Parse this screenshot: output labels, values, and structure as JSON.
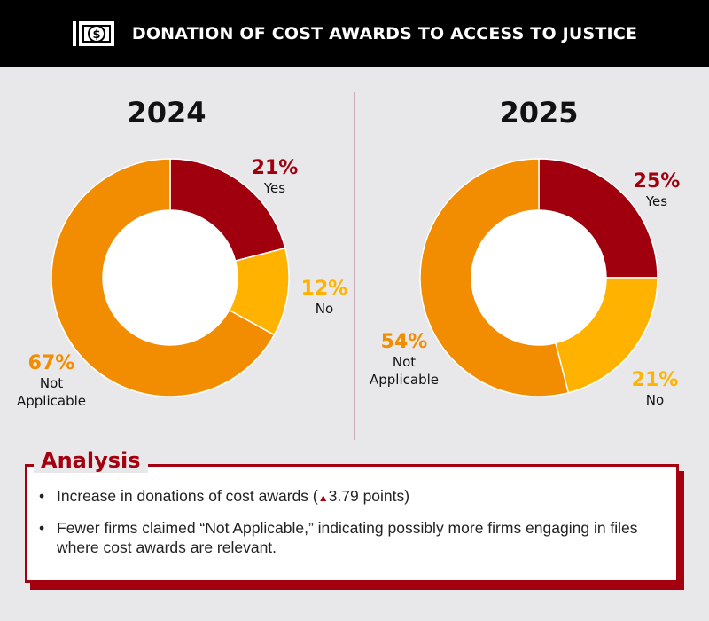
{
  "header": {
    "title": "DONATION OF COST AWARDS TO ACCESS TO JUSTICE",
    "icon": "money-bill-icon"
  },
  "colors": {
    "yes": "#a0000e",
    "no": "#ffb300",
    "not_applicable": "#f28c00",
    "accent": "#a4000f"
  },
  "chart_data": [
    {
      "type": "pie",
      "title": "2024",
      "slices": [
        {
          "label": "Yes",
          "value_label": "21%",
          "value": 21
        },
        {
          "label": "No",
          "value_label": "12%",
          "value": 12
        },
        {
          "label": "Not Applicable",
          "value_label": "67%",
          "value": 67
        }
      ]
    },
    {
      "type": "pie",
      "title": "2025",
      "slices": [
        {
          "label": "Yes",
          "value_label": "25%",
          "value": 25
        },
        {
          "label": "No",
          "value_label": "21%",
          "value": 21
        },
        {
          "label": "Not Applicable",
          "value_label": "54%",
          "value": 54
        }
      ]
    }
  ],
  "analysis": {
    "title": "Analysis",
    "bullet": "•",
    "items": [
      {
        "pre": "Increase in donations of cost awards (",
        "icon": "▲",
        "post": "3.79 points)"
      },
      {
        "pre": "Fewer firms claimed “Not Applicable,” indicating possibly more firms engaging in files where cost awards are relevant.",
        "icon": "",
        "post": ""
      }
    ]
  }
}
